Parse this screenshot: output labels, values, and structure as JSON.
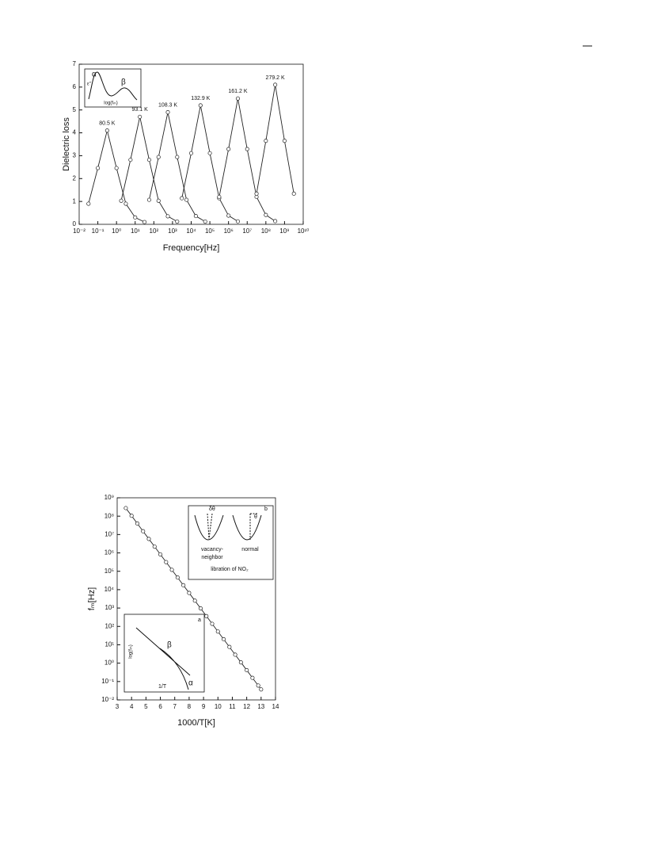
{
  "chart_data": [
    {
      "type": "line",
      "x_label": "Frequency[Hz]",
      "y_label": "Dielectric loss",
      "xscale": "log",
      "xlim": [
        0.01,
        10000000000
      ],
      "ylim": [
        0,
        7
      ],
      "xticks": [
        {
          "value": 0.01,
          "label": "10⁻²"
        },
        {
          "value": 0.1,
          "label": "10⁻¹"
        },
        {
          "value": 1,
          "label": "10⁰"
        },
        {
          "value": 10,
          "label": "10¹"
        },
        {
          "value": 100,
          "label": "10²"
        },
        {
          "value": 1000,
          "label": "10³"
        },
        {
          "value": 10000,
          "label": "10⁴"
        },
        {
          "value": 100000,
          "label": "10⁵"
        },
        {
          "value": 1000000,
          "label": "10⁶"
        },
        {
          "value": 10000000,
          "label": "10⁷"
        },
        {
          "value": 100000000,
          "label": "10⁸"
        },
        {
          "value": 1000000000,
          "label": "10⁹"
        },
        {
          "value": 10000000000,
          "label": "10¹⁰"
        }
      ],
      "yticks": [
        0,
        1,
        2,
        3,
        4,
        5,
        6,
        7
      ],
      "grid": false,
      "series": [
        {
          "name": "80.5 K",
          "color": "#222",
          "x": [
            0.0316,
            0.1,
            0.316,
            1,
            3.16,
            10,
            31.6
          ],
          "values": [
            0.9,
            2.46,
            4.1,
            2.46,
            0.9,
            0.3,
            0.1
          ]
        },
        {
          "name": "93.1 K",
          "color": "#222",
          "x": [
            1.78,
            5.62,
            17.8,
            56.2,
            178,
            562,
            1778
          ],
          "values": [
            1.03,
            2.82,
            4.7,
            2.82,
            1.03,
            0.35,
            0.12
          ]
        },
        {
          "name": "108.3 K",
          "color": "#222",
          "x": [
            56.2,
            178,
            562,
            1778,
            5623,
            17783,
            56234
          ],
          "values": [
            1.07,
            2.94,
            4.9,
            2.94,
            1.07,
            0.36,
            0.12
          ]
        },
        {
          "name": "132.9 K",
          "color": "#222",
          "x": [
            3162,
            10000,
            31623,
            100000,
            316228,
            1000000,
            3162278
          ],
          "values": [
            1.14,
            3.11,
            5.2,
            3.11,
            1.14,
            0.38,
            0.13
          ]
        },
        {
          "name": "161.2 K",
          "color": "#222",
          "x": [
            316228,
            1000000,
            3162278,
            10000000,
            31622777,
            100000000,
            316227766
          ],
          "values": [
            1.2,
            3.29,
            5.5,
            3.29,
            1.2,
            0.41,
            0.14
          ]
        },
        {
          "name": "279.2 K",
          "color": "#222",
          "x": [
            31622777,
            100000000,
            316227766,
            1000000000,
            3162277660
          ],
          "values": [
            1.34,
            3.65,
            6.1,
            3.65,
            1.34
          ]
        }
      ],
      "inset": {
        "alpha": "α",
        "beta": "β",
        "y_label": "ε''",
        "x_label": "log(fₘ)"
      }
    },
    {
      "type": "line",
      "x_label": "1000/T[K]",
      "y_label": "fₘ[Hz]",
      "yscale": "log",
      "xlim": [
        3,
        14
      ],
      "ylim": [
        0.01,
        1000000000
      ],
      "xticks": [
        3,
        4,
        5,
        6,
        7,
        8,
        9,
        10,
        11,
        12,
        13,
        14
      ],
      "yticks": [
        {
          "value": 0.01,
          "label": "10⁻²"
        },
        {
          "value": 0.1,
          "label": "10⁻¹"
        },
        {
          "value": 1,
          "label": "10⁰"
        },
        {
          "value": 10,
          "label": "10¹"
        },
        {
          "value": 100,
          "label": "10²"
        },
        {
          "value": 1000,
          "label": "10³"
        },
        {
          "value": 10000,
          "label": "10⁴"
        },
        {
          "value": 100000,
          "label": "10⁵"
        },
        {
          "value": 1000000,
          "label": "10⁶"
        },
        {
          "value": 10000000,
          "label": "10⁷"
        },
        {
          "value": 100000000,
          "label": "10⁸"
        },
        {
          "value": 1000000000,
          "label": "10⁹"
        }
      ],
      "grid": false,
      "series": [
        {
          "color": "#222",
          "x": [
            3.6,
            4.0,
            4.4,
            4.8,
            5.2,
            5.6,
            6.0,
            6.4,
            6.8,
            7.2,
            7.6,
            8.0,
            8.4,
            8.8,
            9.2,
            9.6,
            10.0,
            10.4,
            10.8,
            11.2,
            11.6,
            12.0,
            12.4,
            12.8,
            13.0
          ],
          "values": [
            275000000,
            105000000,
            39800000,
            15100000,
            5750000,
            2190000,
            832000,
            316000,
            120000,
            45700,
            17400,
            6610,
            2510,
            955,
            363,
            138,
            52.5,
            20.0,
            7.59,
            2.88,
            1.1,
            0.417,
            0.158,
            0.0603,
            0.0372
          ]
        }
      ],
      "insets": [
        {
          "panel": "b",
          "labels": [
            "δθ",
            "θ",
            "vacancy-",
            "neighbor",
            "normal",
            "libration of NO₂"
          ]
        },
        {
          "panel": "a",
          "labels": [
            "log(fₘ)",
            "β",
            "α",
            "1/T"
          ]
        }
      ]
    }
  ]
}
